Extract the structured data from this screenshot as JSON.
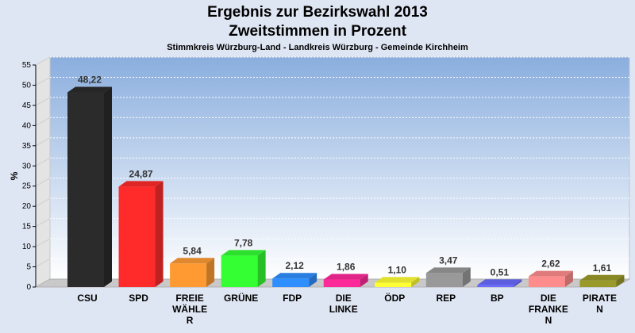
{
  "title_line1": "Ergebnis zur Bezirkswahl 2013",
  "title_line2": "Zweitstimmen in Prozent",
  "subtitle": "Stimmkreis Würzburg-Land - Landkreis Würzburg - Gemeinde Kirchheim",
  "chart_data": {
    "type": "bar",
    "title": "Ergebnis zur Bezirkswahl 2013 Zweitstimmen in Prozent",
    "subtitle": "Stimmkreis Würzburg-Land - Landkreis Würzburg - Gemeinde Kirchheim",
    "xlabel": "",
    "ylabel": "%",
    "ylim": [
      0,
      55
    ],
    "yticks": [
      0,
      5,
      10,
      15,
      20,
      25,
      30,
      35,
      40,
      45,
      50,
      55
    ],
    "grid": true,
    "categories": [
      "CSU",
      "SPD",
      "FREIE WÄHLER",
      "GRÜNE",
      "FDP",
      "DIE LINKE",
      "ÖDP",
      "REP",
      "BP",
      "DIE FRANKEN",
      "PIRATEN"
    ],
    "category_labels": [
      [
        "CSU"
      ],
      [
        "SPD"
      ],
      [
        "FREIE",
        "WÄHLE",
        "R"
      ],
      [
        "GRÜNE"
      ],
      [
        "FDP"
      ],
      [
        "DIE",
        "LINKE"
      ],
      [
        "ÖDP"
      ],
      [
        "REP"
      ],
      [
        "BP"
      ],
      [
        "DIE",
        "FRANKE",
        "N"
      ],
      [
        "PIRATE",
        "N"
      ]
    ],
    "values": [
      48.22,
      24.87,
      5.84,
      7.78,
      2.12,
      1.86,
      1.1,
      3.47,
      0.51,
      2.62,
      1.61
    ],
    "value_labels": [
      "48,22",
      "24,87",
      "5,84",
      "7,78",
      "2,12",
      "1,86",
      "1,10",
      "3,47",
      "0,51",
      "2,62",
      "1,61"
    ],
    "colors": [
      "#2b2b2b",
      "#ff2a2a",
      "#ff9a33",
      "#33ff33",
      "#2f8fff",
      "#ff2a9a",
      "#ffff33",
      "#999999",
      "#6a6aff",
      "#ff8c8c",
      "#9a9a2a"
    ]
  }
}
